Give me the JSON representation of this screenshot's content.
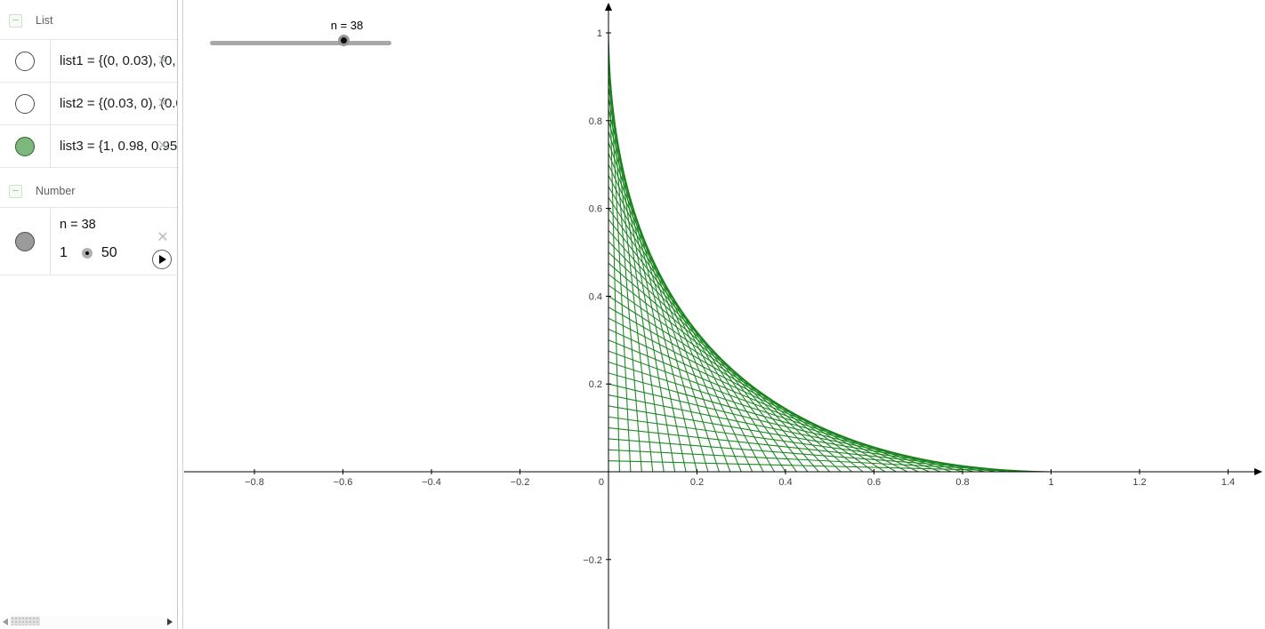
{
  "algebra_panel": {
    "sections": [
      {
        "label": "List",
        "collapse_icon": "−",
        "items": [
          {
            "id": "list1",
            "text": "list1 = {(0, 0.03), (0, 0",
            "marble": "white",
            "close_icon": "✕"
          },
          {
            "id": "list2",
            "text": "list2 = {(0.03, 0), (0.0",
            "marble": "white",
            "close_icon": "✕"
          },
          {
            "id": "list3",
            "text": "list3 = {1, 0.98, 0.95,",
            "marble": "green",
            "close_icon": "✕"
          }
        ]
      },
      {
        "label": "Number",
        "collapse_icon": "−",
        "items": [
          {
            "id": "n",
            "definition": "n = 38",
            "min_label": "1",
            "max_label": "50",
            "marble": "gray",
            "close_icon": "✕",
            "play_icon": "play"
          }
        ]
      }
    ]
  },
  "graphics_panel": {
    "slider": {
      "label": "n = 38",
      "value": 38,
      "min": 1,
      "max": 50
    },
    "axes": {
      "origin_label": "0",
      "x_ticks": [
        {
          "v": -0.8,
          "label": "−0.8"
        },
        {
          "v": -0.6,
          "label": "−0.6"
        },
        {
          "v": -0.4,
          "label": "−0.4"
        },
        {
          "v": -0.2,
          "label": "−0.2"
        },
        {
          "v": 0.2,
          "label": "0.2"
        },
        {
          "v": 0.4,
          "label": "0.4"
        },
        {
          "v": 0.6,
          "label": "0.6"
        },
        {
          "v": 0.8,
          "label": "0.8"
        },
        {
          "v": 1,
          "label": "1"
        },
        {
          "v": 1.2,
          "label": "1.2"
        },
        {
          "v": 1.4,
          "label": "1.4"
        }
      ],
      "y_ticks": [
        {
          "v": 1,
          "label": "1"
        },
        {
          "v": 0.8,
          "label": "0.8"
        },
        {
          "v": 0.6,
          "label": "0.6"
        },
        {
          "v": 0.4,
          "label": "0.4"
        },
        {
          "v": 0.2,
          "label": "0.2"
        },
        {
          "v": -0.2,
          "label": "−0.2"
        }
      ],
      "x_range": [
        -0.95,
        1.49
      ],
      "y_range": [
        -0.36,
        1.07
      ],
      "axis_color": "#000000",
      "label_color": "#3d3d3d"
    },
    "string_art": {
      "segment_count": 40,
      "spacing": 0.025,
      "color": "#17821c"
    }
  },
  "colors": {
    "marble_green": "#7cb87c",
    "marble_gray": "#9b9b9b",
    "slider_track": "#a8a8a8",
    "separator": "#e7e7e7"
  }
}
